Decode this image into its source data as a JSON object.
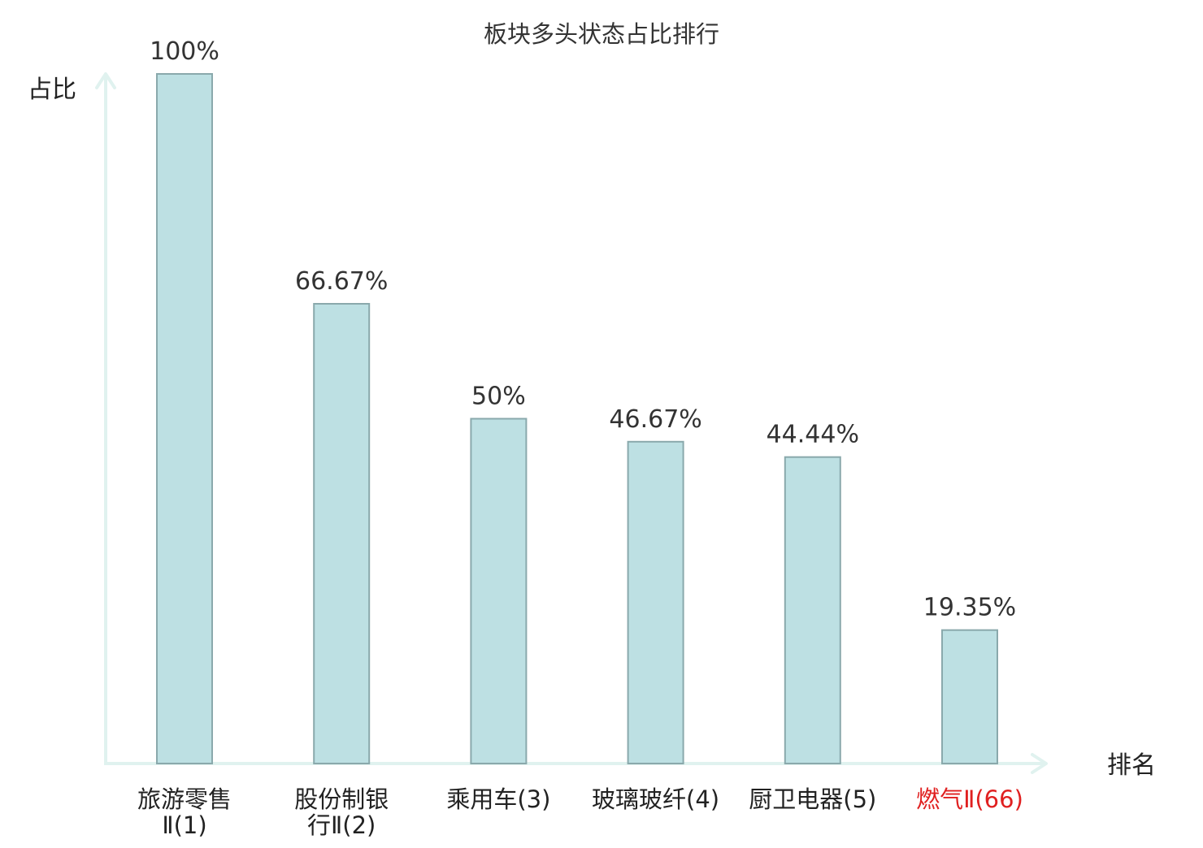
{
  "chart_data": {
    "type": "bar",
    "title": "板块多头状态占比排行",
    "ylabel": "占比",
    "xlabel": "排名",
    "ylim": [
      0,
      100
    ],
    "grid": false,
    "categories": [
      [
        "旅游零售",
        "Ⅱ(1)"
      ],
      [
        "股份制银",
        "行Ⅱ(2)"
      ],
      [
        "乘用车(3)"
      ],
      [
        "玻璃玻纤(4)"
      ],
      [
        "厨卫电器(5)"
      ],
      [
        "燃气Ⅱ(66)"
      ]
    ],
    "values": [
      100,
      66.67,
      50,
      46.67,
      44.44,
      19.35
    ],
    "value_labels": [
      "100%",
      "66.67%",
      "50%",
      "46.67%",
      "44.44%",
      "19.35%"
    ],
    "highlighted_category_index": 5
  },
  "colors": {
    "bar_fill": "#bde0e3",
    "bar_stroke": "#8aa9ac",
    "axis": "#e0f2ef",
    "text": "#333333",
    "highlight_text": "#e02020"
  }
}
